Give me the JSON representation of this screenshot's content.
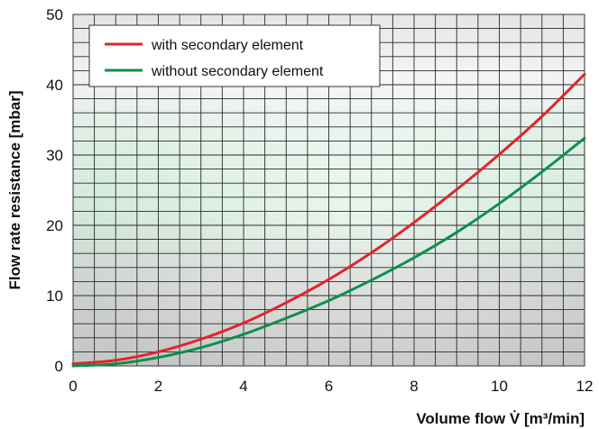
{
  "chart_data": {
    "type": "line",
    "title": "",
    "xlabel": "Volume flow V̇ [m³/min]",
    "ylabel": "Flow rate resistance [mbar]",
    "xlim": [
      0,
      12
    ],
    "ylim": [
      0,
      50
    ],
    "x_ticks": [
      "0",
      "2",
      "4",
      "6",
      "8",
      "10",
      "12"
    ],
    "y_ticks": [
      "0",
      "10",
      "20",
      "30",
      "40",
      "50"
    ],
    "grid": true,
    "legend_position": "top-left",
    "series": [
      {
        "name": "with secondary element",
        "color": "#e3242b",
        "x": [
          0,
          1,
          2,
          3,
          4,
          5,
          6,
          7,
          8,
          9,
          10,
          11,
          12
        ],
        "values": [
          0.3,
          0.8,
          2.0,
          3.8,
          6.1,
          9.0,
          12.3,
          16.1,
          20.4,
          25.1,
          30.1,
          35.5,
          41.5
        ]
      },
      {
        "name": "without secondary element",
        "color": "#0e8f4e",
        "x": [
          0,
          1,
          2,
          3,
          4,
          5,
          6,
          7,
          8,
          9,
          10,
          11,
          12
        ],
        "values": [
          0.0,
          0.3,
          1.2,
          2.6,
          4.5,
          6.8,
          9.3,
          12.2,
          15.4,
          19.0,
          23.1,
          27.6,
          32.4
        ]
      }
    ]
  }
}
